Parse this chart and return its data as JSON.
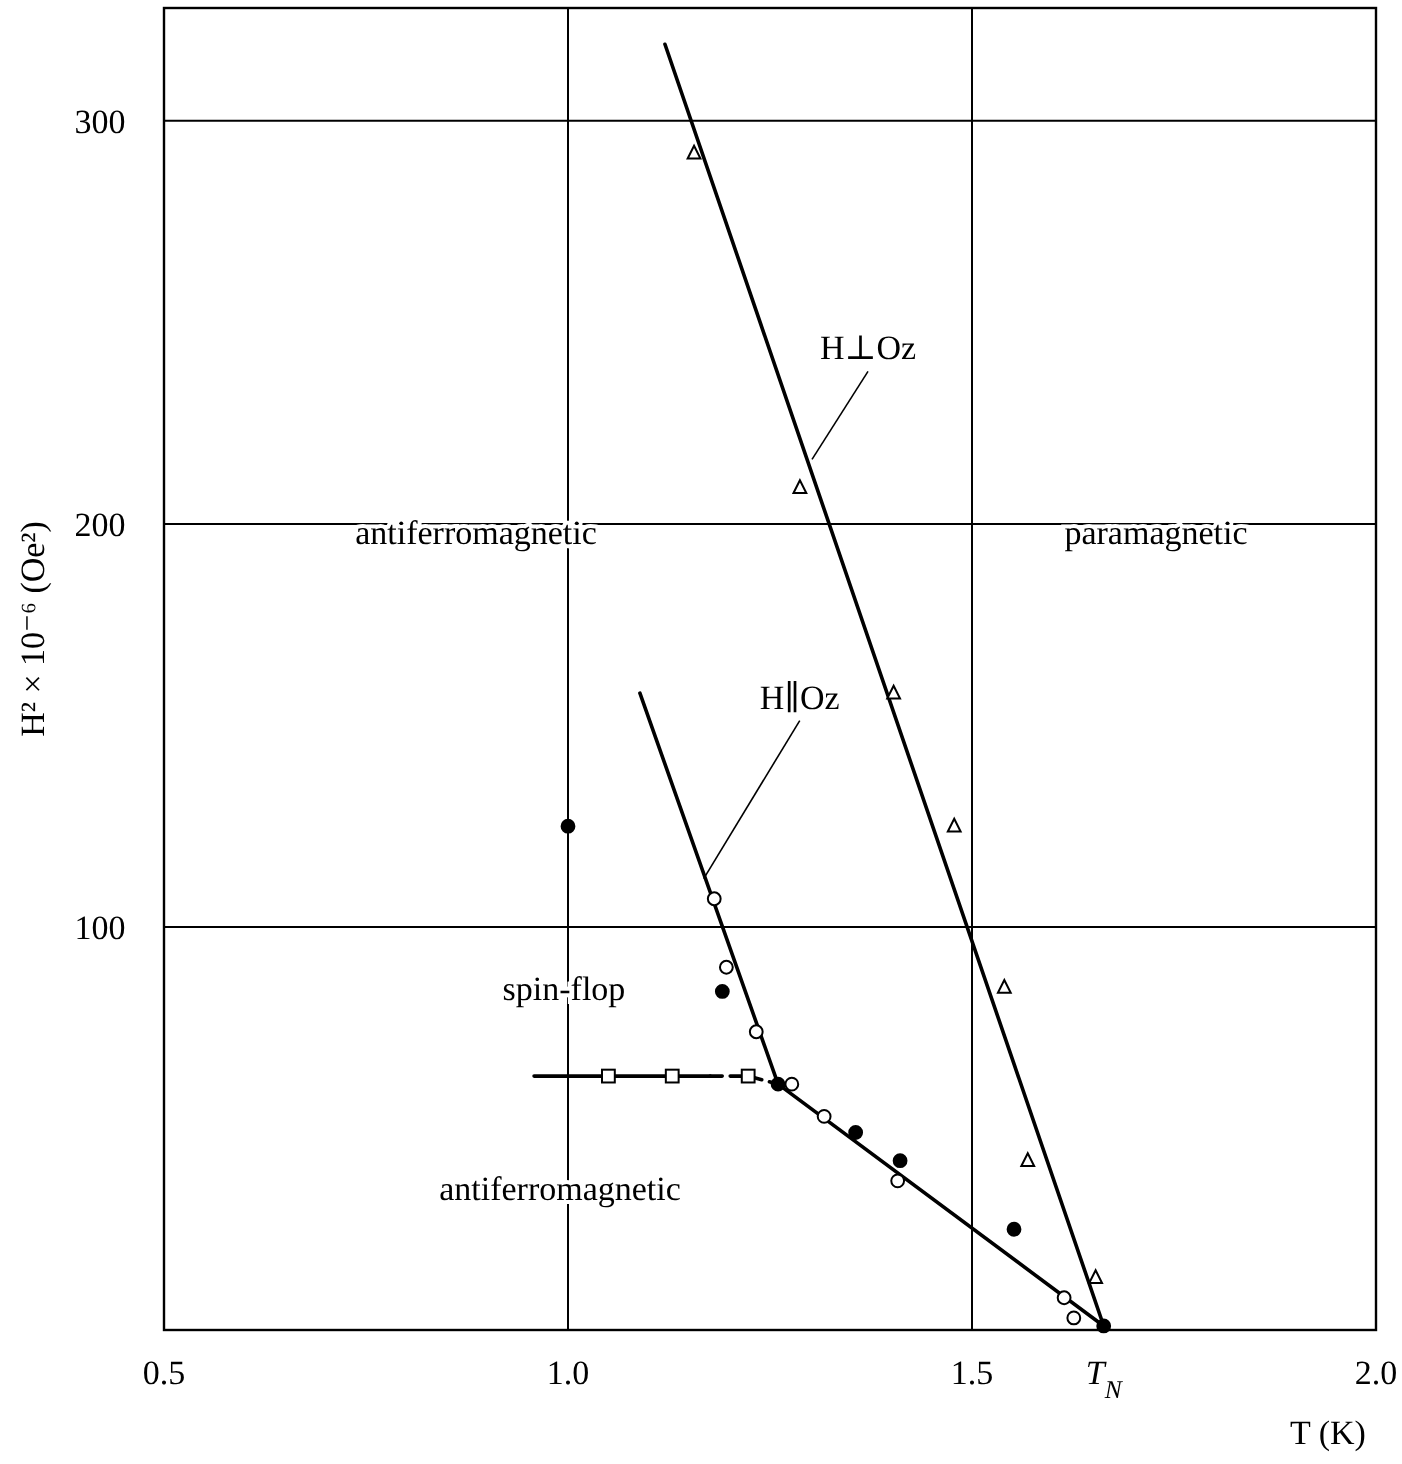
{
  "chart_data": {
    "type": "scatter",
    "xlabel": "T (K)",
    "ylabel": "H² × 10⁻⁶  (Oe²)",
    "xlim": [
      0.5,
      2.0
    ],
    "ylim": [
      0,
      328
    ],
    "xticks": [
      0.5,
      {
        "value": 1.0,
        "label": "1.0"
      },
      1.5,
      {
        "value": 2.0,
        "label": "2.0"
      }
    ],
    "yticks": [
      100,
      200,
      300
    ],
    "grid": true,
    "series": [
      {
        "type": "line",
        "color": "#000000",
        "marker": "none",
        "line_style": "solid",
        "x": [
          1.12,
          1.663
        ],
        "values": [
          319,
          1
        ]
      },
      {
        "type": "line",
        "color": "#000000",
        "marker": "none",
        "line_style": "solid",
        "x": [
          1.089,
          1.26,
          1.663
        ],
        "values": [
          158,
          61,
          1
        ]
      },
      {
        "type": "line",
        "color": "#000000",
        "marker": "none",
        "line_style": "solid",
        "x": [
          0.958,
          1.176
        ],
        "values": [
          63,
          63
        ]
      },
      {
        "type": "line",
        "color": "#000000",
        "marker": "none",
        "line_style": "dashed",
        "x": [
          1.176,
          1.223,
          1.26
        ],
        "values": [
          63,
          63,
          61
        ]
      },
      {
        "color": "#ffffff",
        "marker": "triangle",
        "x": [
          1.156,
          1.287,
          1.403,
          1.478,
          1.54,
          1.569,
          1.653
        ],
        "values": [
          292,
          209,
          158,
          125,
          85,
          42,
          13
        ]
      },
      {
        "color": "#ffffff",
        "marker": "square",
        "x": [
          1.05,
          1.129,
          1.223
        ],
        "values": [
          63,
          63,
          63
        ]
      },
      {
        "color": "#ffffff",
        "marker": "circle",
        "x": [
          1.181,
          1.196,
          1.233,
          1.277,
          1.317,
          1.408,
          1.614,
          1.626
        ],
        "values": [
          107,
          90,
          74,
          61,
          53,
          37,
          8,
          3
        ]
      },
      {
        "color": "#000000",
        "marker": "circle",
        "x": [
          1.0,
          1.191,
          1.26,
          1.356,
          1.411,
          1.552,
          1.663
        ],
        "values": [
          125,
          84,
          61,
          49,
          42,
          25,
          1
        ]
      }
    ],
    "annotations": [
      "antiferromagnetic",
      "paramagnetic",
      "spin-flop",
      "antiferromagnetic",
      {
        "text": "H⊥Oz",
        "x": 1.302,
        "y": 216
      },
      {
        "text": "H∥Oz",
        "x": 1.168,
        "y": 112
      },
      {
        "text": "T$_{N}$",
        "x": 1.663,
        "y": 0
      }
    ]
  }
}
